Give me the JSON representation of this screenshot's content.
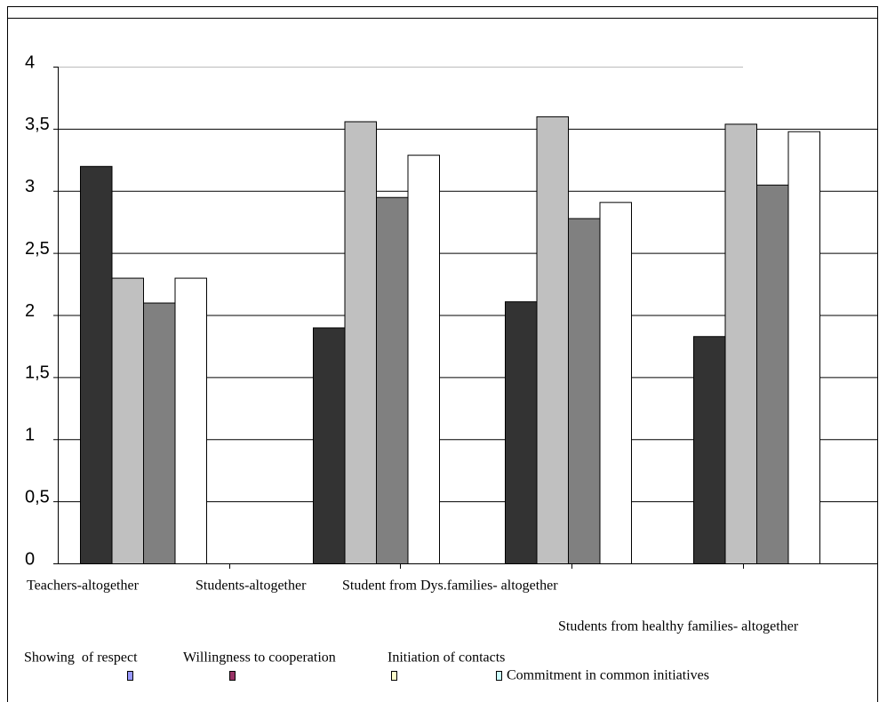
{
  "chart_data": {
    "type": "bar",
    "categories": [
      "Teachers-altogether",
      "Students-altogether",
      "Student from Dys.families- altogether",
      "Students from healthy families- altogether"
    ],
    "series": [
      {
        "name": "Showing  of respect",
        "color": "#333333",
        "legend_color": "#9999ff",
        "values": [
          3.2,
          1.9,
          2.11,
          1.83
        ]
      },
      {
        "name": "Willingness to cooperation",
        "color": "#c0c0c0",
        "legend_color": "#993366",
        "values": [
          2.3,
          3.56,
          3.6,
          3.54
        ]
      },
      {
        "name": "Initiation of contacts",
        "color": "#808080",
        "legend_color": "#ffffcc",
        "values": [
          2.1,
          2.95,
          2.78,
          3.05
        ]
      },
      {
        "name": "Commitment in common initiatives",
        "color": "#ffffff",
        "legend_color": "#ccffff",
        "values": [
          2.3,
          3.29,
          2.91,
          3.48
        ]
      }
    ],
    "ylim": [
      0,
      4
    ],
    "yticks": [
      0,
      {
        "value": 0.5,
        "label": "0,5"
      },
      1,
      {
        "value": 1.5,
        "label": "1,5"
      },
      2,
      {
        "value": 2.5,
        "label": "2,5"
      },
      3,
      {
        "value": 3.5,
        "label": "3,5"
      },
      4
    ],
    "grid": true
  }
}
